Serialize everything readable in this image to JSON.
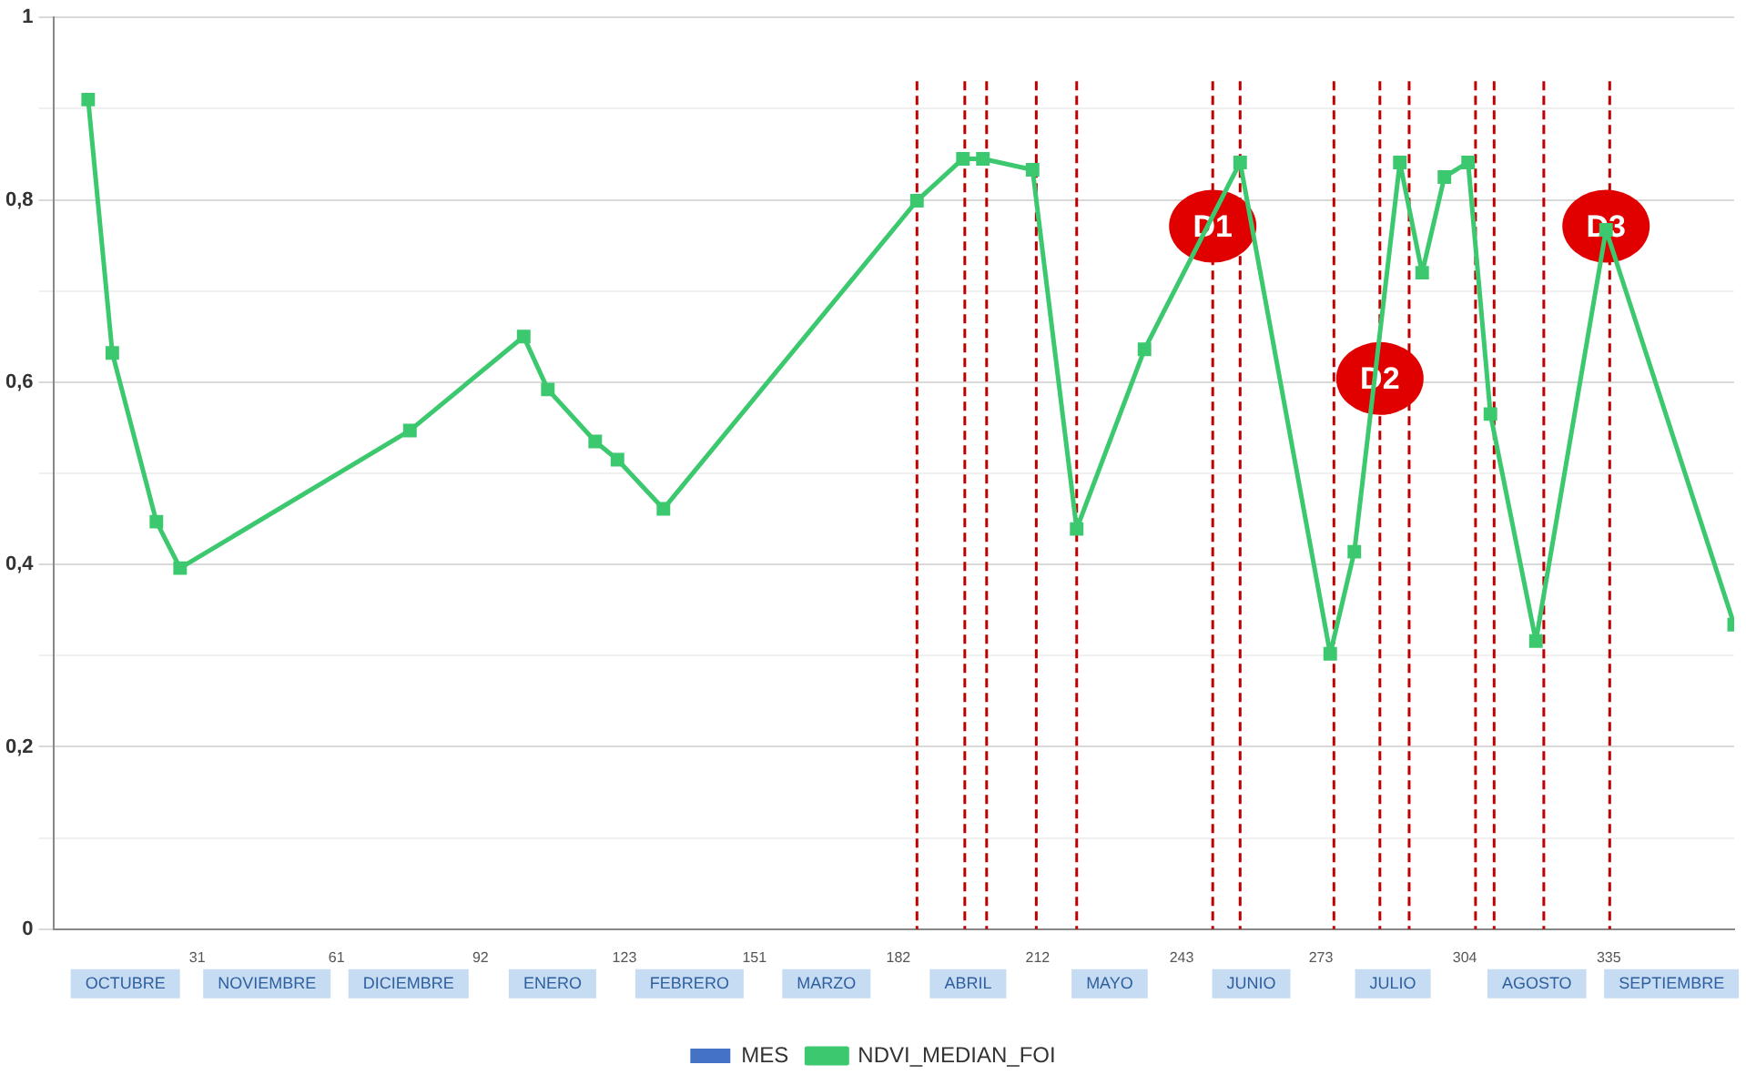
{
  "chart_data": {
    "type": "line",
    "x": [
      7.5,
      12.7,
      22.2,
      27.3,
      76.8,
      101.3,
      106.5,
      116.7,
      121.5,
      131.4,
      186,
      195.9,
      200.2,
      210.9,
      220.4,
      235,
      255.6,
      275,
      280.2,
      290,
      294.8,
      299.6,
      304.7,
      309.5,
      319.3,
      334.4,
      362
    ],
    "series": [
      {
        "name": "MES",
        "type": "bar",
        "color": "#4472c4",
        "values": [
          null,
          null,
          null,
          null,
          null,
          null,
          null,
          null,
          null,
          null,
          null,
          null,
          null,
          null,
          null,
          null,
          null,
          null,
          null,
          null,
          null,
          null,
          null,
          null,
          null,
          null,
          null
        ]
      },
      {
        "name": "NDVI_MEDIAN_FOI",
        "color": "#3cc86e",
        "marker": "square",
        "values": [
          0.91,
          0.632,
          0.447,
          0.396,
          0.547,
          0.65,
          0.592,
          0.535,
          0.515,
          0.461,
          0.799,
          0.845,
          0.845,
          0.833,
          0.439,
          0.636,
          0.841,
          0.302,
          0.414,
          0.841,
          0.72,
          0.825,
          0.841,
          0.565,
          0.316,
          0.767,
          0.334
        ]
      }
    ],
    "xlim": [
      0,
      362
    ],
    "xticks": [
      31,
      61,
      92,
      123,
      151,
      182,
      212,
      243,
      273,
      304,
      335
    ],
    "ylim": [
      0,
      1
    ],
    "yticks": [
      0,
      {
        "value": 0.1,
        "label": null
      },
      {
        "value": 0.2,
        "label": "0,2"
      },
      {
        "value": 0.3,
        "label": null
      },
      {
        "value": 0.4,
        "label": "0,4"
      },
      {
        "value": 0.5,
        "label": null
      },
      {
        "value": 0.6,
        "label": "0,6"
      },
      {
        "value": 0.7,
        "label": null
      },
      {
        "value": 0.8,
        "label": "0,8"
      },
      {
        "value": 0.9,
        "label": null
      },
      1
    ],
    "grid": "y",
    "legend": "bottom",
    "ref_lines": [
      {
        "axis": "x",
        "value": 186,
        "color": "#c00000",
        "line_style": "dashed"
      },
      {
        "axis": "x",
        "value": 196.3,
        "color": "#c00000",
        "line_style": "dashed"
      },
      {
        "axis": "x",
        "value": 201,
        "color": "#c00000",
        "line_style": "dashed"
      },
      {
        "axis": "x",
        "value": 211.7,
        "color": "#c00000",
        "line_style": "dashed"
      },
      {
        "axis": "x",
        "value": 220.4,
        "color": "#c00000",
        "line_style": "dashed"
      },
      {
        "axis": "x",
        "value": 249.7,
        "color": "#c00000",
        "line_style": "dashed"
      },
      {
        "axis": "x",
        "value": 255.6,
        "color": "#c00000",
        "line_style": "dashed"
      },
      {
        "axis": "x",
        "value": 275.8,
        "color": "#c00000",
        "line_style": "dashed"
      },
      {
        "axis": "x",
        "value": 285.7,
        "color": "#c00000",
        "line_style": "dashed"
      },
      {
        "axis": "x",
        "value": 292,
        "color": "#c00000",
        "line_style": "dashed"
      },
      {
        "axis": "x",
        "value": 306.3,
        "color": "#c00000",
        "line_style": "dashed"
      },
      {
        "axis": "x",
        "value": 310.3,
        "color": "#c00000",
        "line_style": "dashed"
      },
      {
        "axis": "x",
        "value": 321,
        "color": "#c00000",
        "line_style": "dashed"
      },
      {
        "axis": "x",
        "value": 335.2,
        "color": "#c00000",
        "line_style": "dashed"
      }
    ],
    "annotations": [
      {
        "text": "D1",
        "x": 249.7,
        "y": 0.771
      },
      {
        "text": "D2",
        "x": 285.7,
        "y": 0.604
      },
      {
        "text": "D3",
        "x": 334.4,
        "y": 0.771
      },
      "OCTUBRE",
      "NOVIEMBRE",
      "DICIEMBRE",
      "ENERO",
      "FEBRERO",
      "MARZO",
      "ABRIL",
      "MAYO",
      "JUNIO",
      "JULIO",
      "AGOSTO",
      "SEPTIEMBRE"
    ]
  }
}
